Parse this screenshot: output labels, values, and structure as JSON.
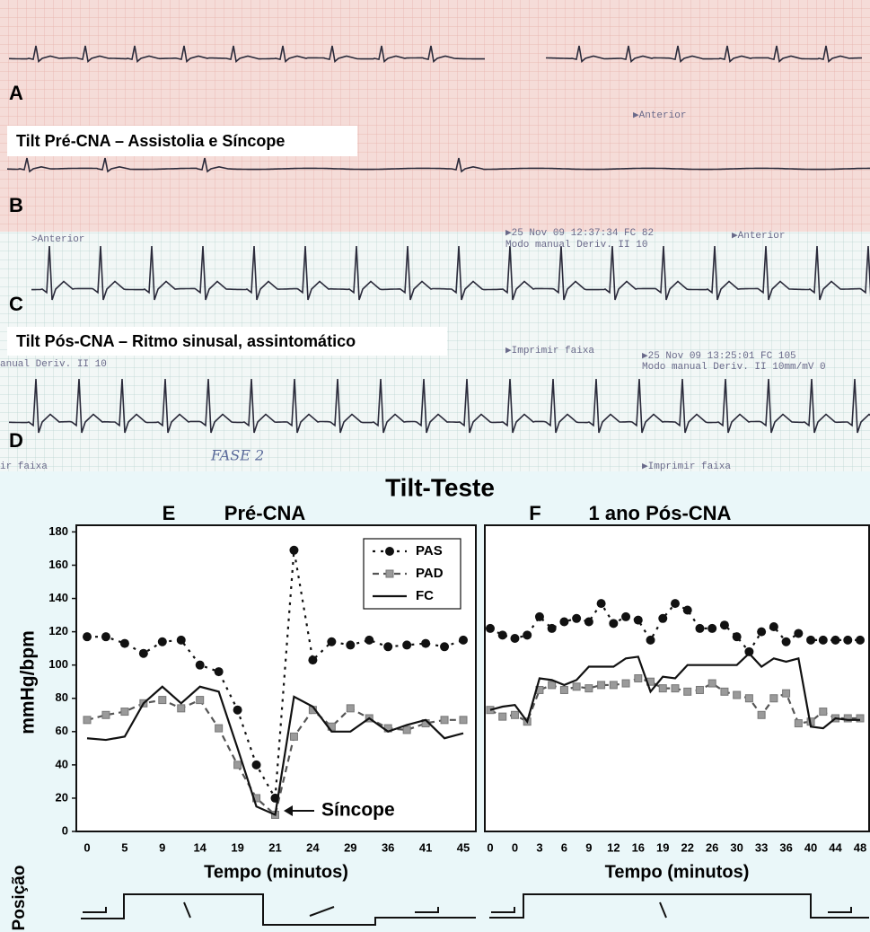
{
  "ecg": {
    "strip_labels": [
      "A",
      "B",
      "C",
      "D"
    ],
    "captions": [
      "Tilt Pré-CNA – Assistolia e Síncope",
      "Tilt Pós-CNA – Ritmo sinusal, assintomático"
    ],
    "printout": [
      ">Anterior",
      "▶Anterior",
      "▶25 Nov 09 12:37:34 FC 82",
      "Modo manual Deriv. II 10",
      "▶Anterior",
      "▶Imprimir faixa",
      "anual Deriv. II 10",
      "▶25 Nov 09 13:25:01 FC 105",
      "Modo manual Deriv. II 10mm/mV 0",
      "FASE 2",
      "ir faixa",
      "▶Imprimir faixa"
    ]
  },
  "figure": {
    "title": "Tilt-Teste",
    "position_label": "Posição"
  },
  "chart_data": [
    {
      "type": "line",
      "panel": "E",
      "title": "Pré-CNA",
      "ylabel": "mmHg/bpm",
      "xlabel": "Tempo (minutos)",
      "categories": [
        "0",
        null,
        "5",
        null,
        "9",
        null,
        "14",
        null,
        "19",
        null,
        "21",
        null,
        "24",
        null,
        "29",
        null,
        "36",
        null,
        "41",
        null,
        "45"
      ],
      "ylim": [
        0,
        184
      ],
      "yticks": [
        0,
        20,
        40,
        60,
        80,
        100,
        120,
        140,
        160,
        180
      ],
      "legend": "upper right",
      "annotation": "Síncope",
      "series": [
        {
          "name": "PAS",
          "color": "#111111",
          "dash": "dotted",
          "marker": "circle",
          "values": [
            117,
            117,
            113,
            107,
            114,
            115,
            100,
            96,
            73,
            40,
            20,
            169,
            103,
            114,
            112,
            115,
            111,
            112,
            113,
            111,
            115
          ]
        },
        {
          "name": "PAD",
          "color": "#9a9a9a",
          "dash": "dashed",
          "marker": "square",
          "values": [
            67,
            70,
            72,
            77,
            79,
            74,
            79,
            62,
            40,
            20,
            10,
            57,
            73,
            63,
            74,
            68,
            62,
            61,
            65,
            67,
            67
          ]
        },
        {
          "name": "FC",
          "color": "#111111",
          "dash": "solid",
          "marker": "none",
          "values": [
            56,
            55,
            57,
            77,
            87,
            77,
            87,
            84,
            50,
            15,
            10,
            81,
            75,
            60,
            60,
            68,
            60,
            64,
            67,
            56,
            59
          ]
        }
      ]
    },
    {
      "type": "line",
      "panel": "F",
      "title": "1 ano Pós-CNA",
      "xlabel": "Tempo (minutos)",
      "categories": [
        "0",
        null,
        "0",
        null,
        "3",
        null,
        "6",
        null,
        "9",
        null,
        "12",
        null,
        "16",
        null,
        "19",
        null,
        "22",
        null,
        "26",
        null,
        "30",
        null,
        "33",
        null,
        "36",
        null,
        "40",
        null,
        "44",
        null,
        "48"
      ],
      "ylim": [
        0,
        184
      ],
      "series": [
        {
          "color": "#111111",
          "dash": "dotted",
          "marker": "circle",
          "values": [
            122,
            118,
            116,
            118,
            129,
            122,
            126,
            128,
            126,
            137,
            125,
            129,
            127,
            115,
            128,
            137,
            133,
            122,
            122,
            124,
            117,
            108,
            120,
            123,
            114,
            119,
            115,
            115,
            115,
            115,
            115
          ]
        },
        {
          "color": "#9a9a9a",
          "dash": "dashed",
          "marker": "square",
          "values": [
            73,
            69,
            70,
            66,
            85,
            88,
            85,
            87,
            86,
            88,
            88,
            89,
            92,
            90,
            86,
            86,
            84,
            85,
            89,
            84,
            82,
            80,
            70,
            80,
            83,
            65,
            66,
            72,
            68,
            68,
            68
          ]
        },
        {
          "color": "#111111",
          "dash": "solid",
          "marker": "none",
          "values": [
            73,
            75,
            76,
            66,
            92,
            91,
            88,
            91,
            99,
            99,
            99,
            104,
            105,
            84,
            93,
            92,
            100,
            100,
            100,
            100,
            100,
            107,
            99,
            104,
            102,
            104,
            63,
            62,
            68,
            67,
            67
          ]
        }
      ]
    }
  ]
}
